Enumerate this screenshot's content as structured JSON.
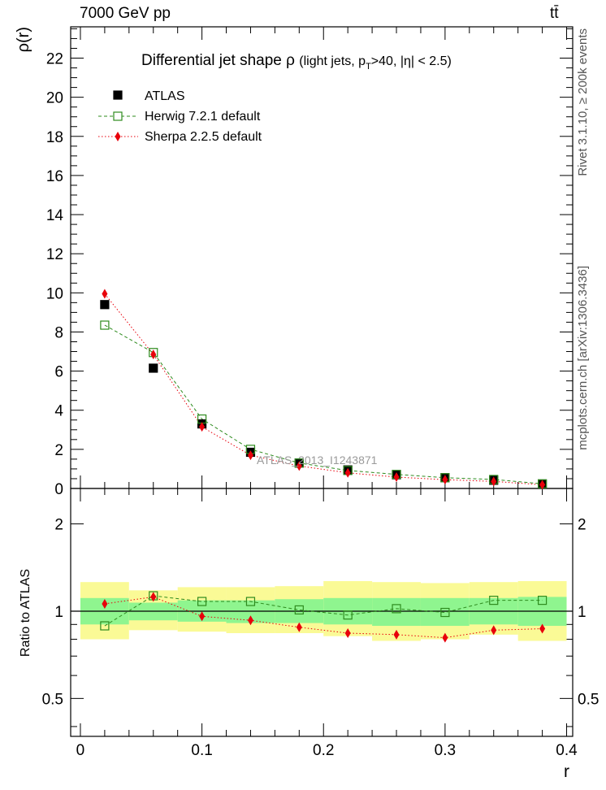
{
  "header": {
    "energy_label": "7000 GeV pp",
    "process_label": "tt̄"
  },
  "side_labels": {
    "rivet": "Rivet 3.1.10, ≥ 200k events",
    "mcplots": "mcplots.cern.ch [arXiv:1306.3436]"
  },
  "chart_data": [
    {
      "type": "scatter",
      "title": "Differential jet shape  ρ (light jets, pT>40, |η| < 2.5)",
      "title_main": "Differential jet shape",
      "title_rho": "ρ",
      "title_detail_pre": "(light jets, p",
      "title_detail_sub": "T",
      "title_detail_post": ">40, |η| < 2.5)",
      "ylabel": "ρ(r)",
      "xlabel": "r",
      "xlim": [
        -0.008,
        0.405
      ],
      "ylim": [
        0,
        23.6
      ],
      "y_ticks": [
        0,
        2,
        4,
        6,
        8,
        10,
        12,
        14,
        16,
        18,
        20,
        22
      ],
      "x_ticks": [
        0,
        0.1,
        0.2,
        0.3,
        0.4
      ],
      "x_tick_labels": [
        "0",
        "0.1",
        "0.2",
        "0.3",
        "0.4"
      ],
      "watermark": "ATLAS_2013_I1243871",
      "legend_position": "top-left",
      "x": [
        0.02,
        0.06,
        0.1,
        0.14,
        0.18,
        0.22,
        0.26,
        0.3,
        0.34,
        0.38
      ],
      "x_bin_edges": [
        0,
        0.04,
        0.08,
        0.12,
        0.16,
        0.2,
        0.24,
        0.28,
        0.32,
        0.36,
        0.4
      ],
      "series": [
        {
          "name": "ATLAS",
          "style": "data",
          "color": "#000000",
          "values": [
            9.4,
            6.15,
            3.3,
            1.85,
            1.3,
            0.95,
            0.7,
            0.55,
            0.42,
            0.22
          ]
        },
        {
          "name": "Herwig 7.2.1 default",
          "style": "open-square-dashed",
          "color": "#2e8b1e",
          "values": [
            8.35,
            6.95,
            3.55,
            2.0,
            1.3,
            0.92,
            0.72,
            0.55,
            0.46,
            0.24
          ]
        },
        {
          "name": "Sherpa 2.2.5 default",
          "style": "diamond-dotted",
          "color": "#e8000b",
          "values": [
            9.95,
            6.85,
            3.15,
            1.7,
            1.15,
            0.8,
            0.58,
            0.45,
            0.36,
            0.19
          ]
        }
      ]
    },
    {
      "type": "scatter",
      "title": "",
      "ylabel": "Ratio to ATLAS",
      "xlabel": "r",
      "y_scale": "log",
      "ylim": [
        0.37,
        2.65
      ],
      "y_ticks": [
        0.5,
        1,
        2
      ],
      "y_tick_labels": [
        "0.5",
        "1",
        "2"
      ],
      "x": [
        0.02,
        0.06,
        0.1,
        0.14,
        0.18,
        0.22,
        0.26,
        0.3,
        0.34,
        0.38
      ],
      "x_bin_edges": [
        0,
        0.04,
        0.08,
        0.12,
        0.16,
        0.2,
        0.24,
        0.28,
        0.32,
        0.36,
        0.4
      ],
      "band_inner": {
        "color": "#8ff58f",
        "low": [
          0.9,
          0.93,
          0.92,
          0.91,
          0.91,
          0.9,
          0.89,
          0.89,
          0.9,
          0.89
        ],
        "high": [
          1.11,
          1.07,
          1.09,
          1.09,
          1.1,
          1.11,
          1.11,
          1.11,
          1.11,
          1.12
        ]
      },
      "band_outer": {
        "color": "#fafa96",
        "low": [
          0.8,
          0.86,
          0.85,
          0.84,
          0.84,
          0.82,
          0.79,
          0.8,
          0.83,
          0.79
        ],
        "high": [
          1.26,
          1.18,
          1.21,
          1.21,
          1.22,
          1.27,
          1.26,
          1.25,
          1.26,
          1.27
        ]
      },
      "series": [
        {
          "name": "Herwig 7.2.1 default",
          "color": "#2e8b1e",
          "values": [
            0.89,
            1.13,
            1.08,
            1.08,
            1.01,
            0.97,
            1.02,
            0.99,
            1.09,
            1.09
          ]
        },
        {
          "name": "Sherpa 2.2.5 default",
          "color": "#e8000b",
          "values": [
            1.06,
            1.12,
            0.96,
            0.93,
            0.88,
            0.84,
            0.83,
            0.81,
            0.86,
            0.87
          ]
        }
      ]
    }
  ]
}
